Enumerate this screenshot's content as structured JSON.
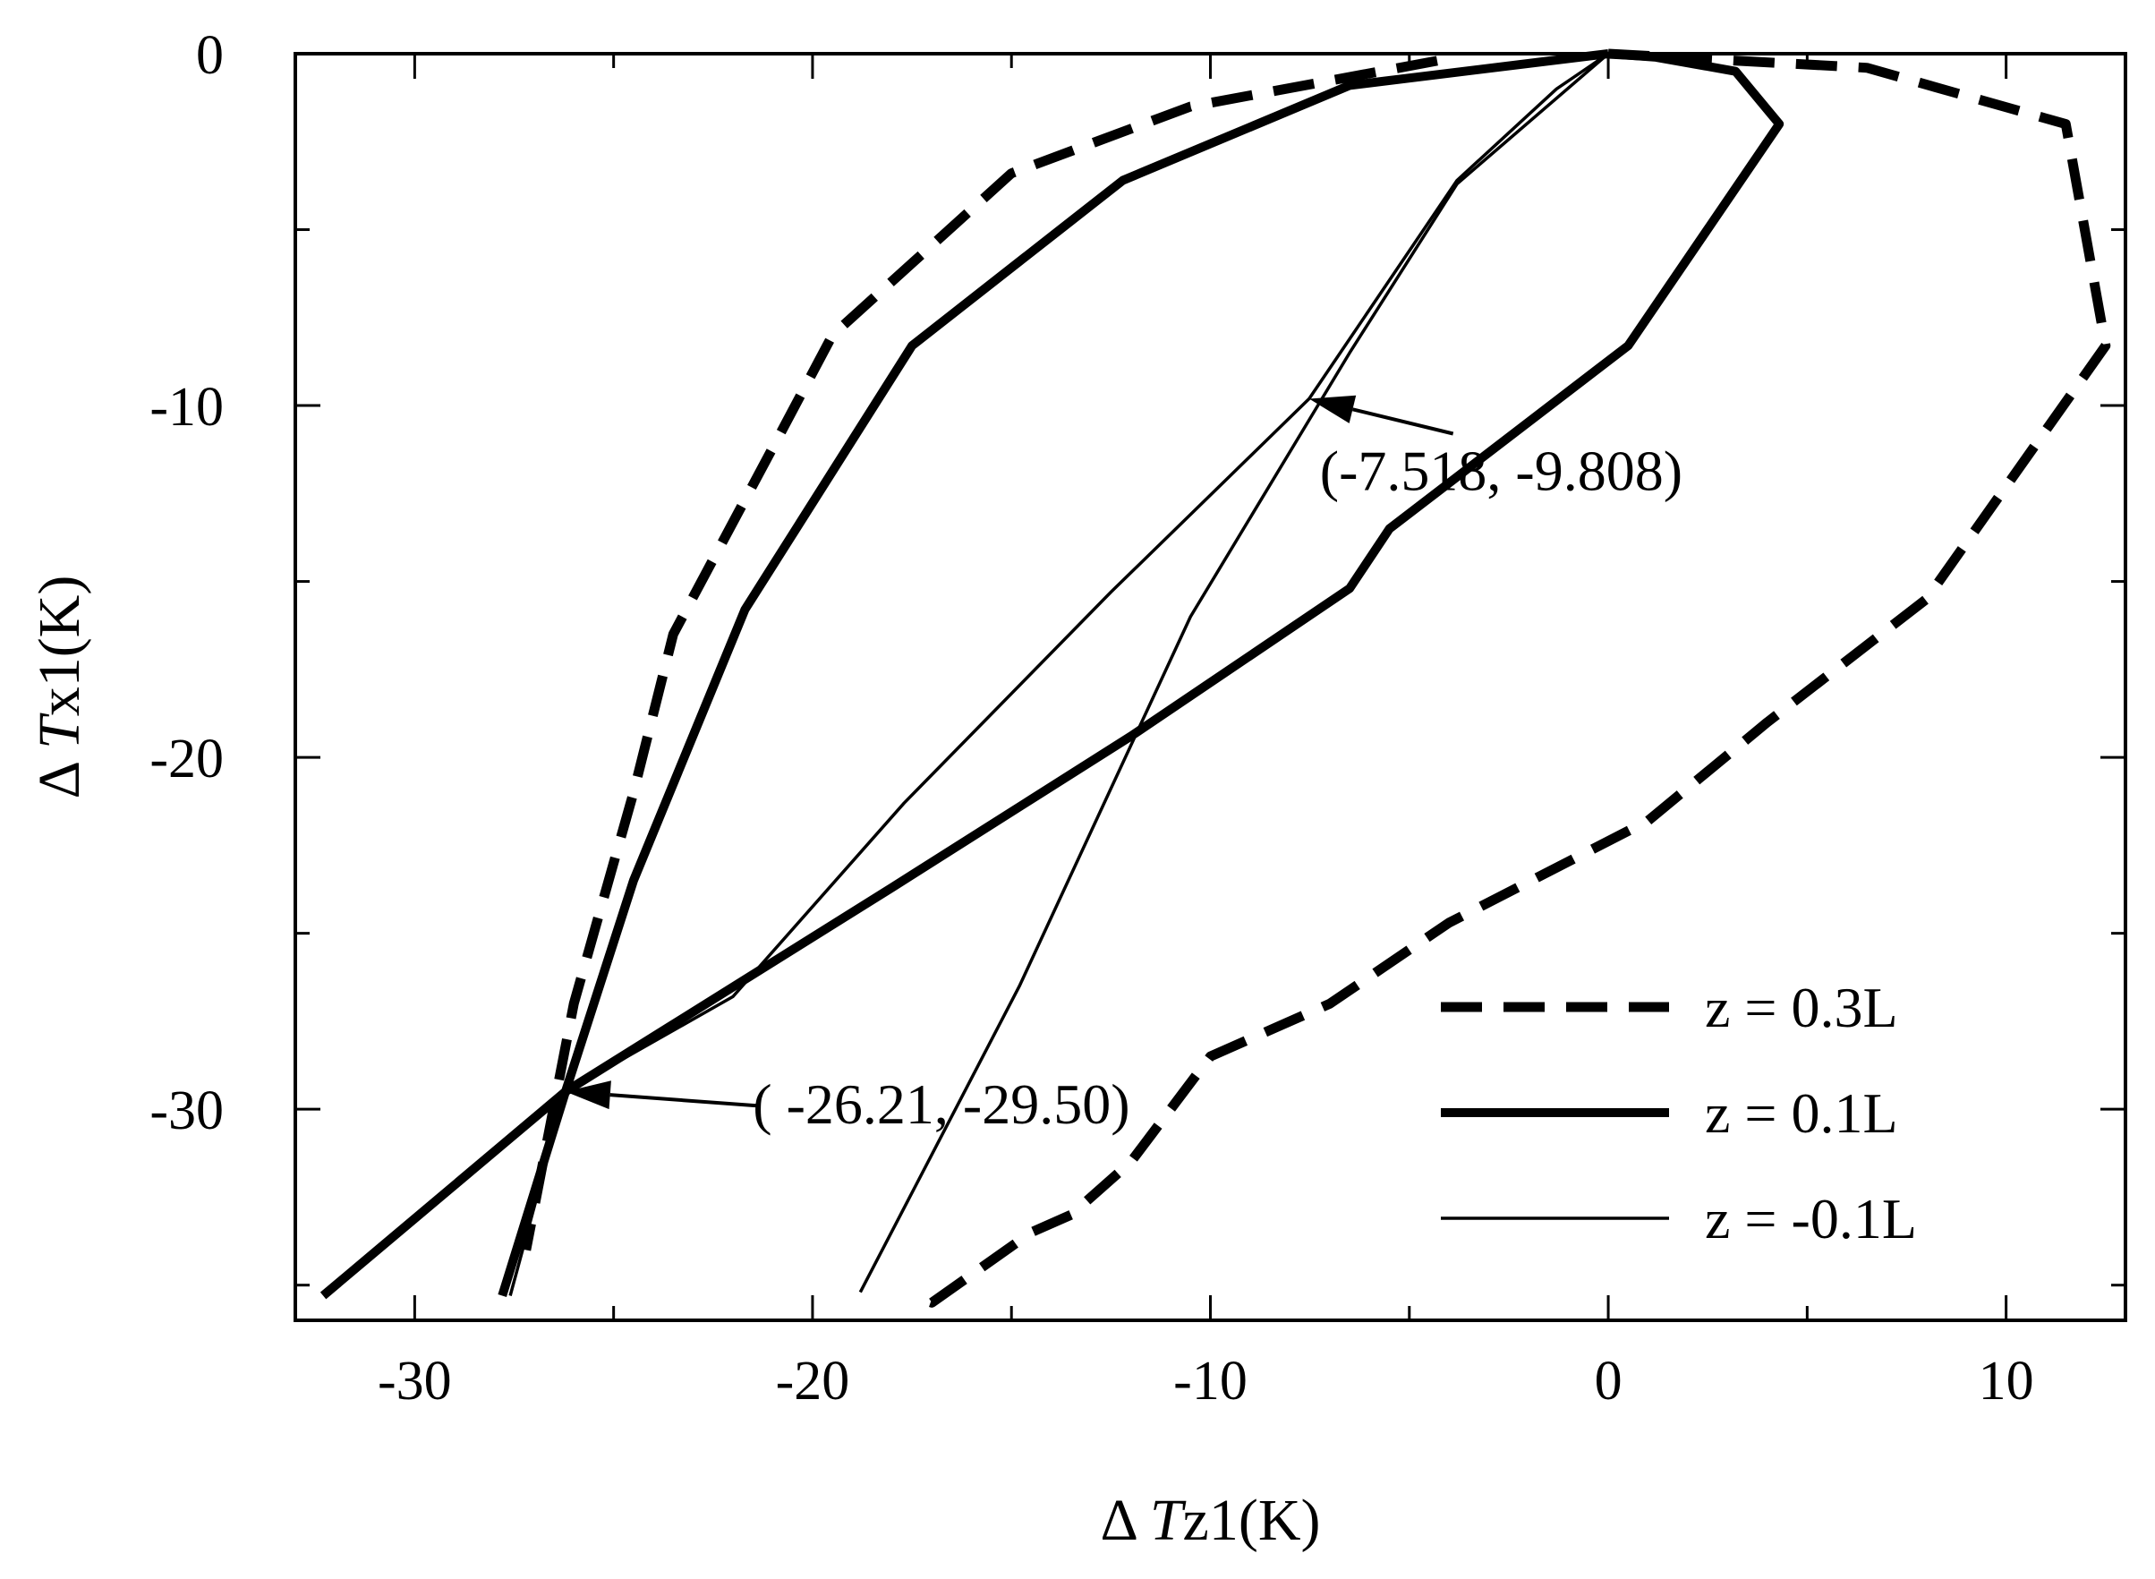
{
  "chart_data": {
    "type": "line",
    "xlabel": {
      "prefix": "Δ ",
      "var": "T",
      "sub": "z1",
      "unit": "(K)"
    },
    "ylabel": {
      "prefix": "Δ ",
      "var": "T",
      "sub": "x1",
      "unit": "(K)"
    },
    "xlim": [
      -33,
      13
    ],
    "ylim": [
      -36,
      0
    ],
    "xticks": [
      -30,
      -20,
      -10,
      0,
      10
    ],
    "xtick_labels": [
      "-30",
      "-20",
      "-10",
      "0",
      "10"
    ],
    "xminor": [
      -25,
      -15,
      -5,
      5
    ],
    "yticks": [
      0,
      -10,
      -20,
      -30
    ],
    "ytick_labels": [
      "0",
      "-10",
      "-20",
      "-30"
    ],
    "yminor": [
      -5,
      -15,
      -25,
      -35
    ],
    "grid": false,
    "legend_position": "bottom-right",
    "series": [
      {
        "name": "z = 0.3L",
        "style": "dashed",
        "x": [
          0,
          6.5,
          11.5,
          12.5,
          8,
          4,
          1,
          -4,
          -7,
          -10,
          -12,
          -13.5,
          -14.5,
          -17,
          -17.5
        ],
        "y": [
          0,
          -0.4,
          -2,
          -8.3,
          -15.5,
          -19,
          -21.8,
          -24.7,
          -27,
          -28.5,
          -31.5,
          -33,
          -33.5,
          -35.5,
          -35.3
        ]
      },
      {
        "name": "z = 0.1L",
        "style": "thick",
        "x": [
          0,
          1.2,
          3.2,
          4.3,
          0.5,
          -5.5,
          -6.5,
          -12,
          -18,
          -26.21,
          -32.3
        ],
        "y": [
          0,
          -0.1,
          -0.5,
          -2,
          -8.3,
          -13.5,
          -15.2,
          -19.4,
          -23.7,
          -29.5,
          -35.3
        ]
      },
      {
        "name": "z = -0.1L",
        "style": "thin",
        "x": [
          0,
          -3.8,
          -6.5,
          -10.5,
          -14.8,
          -18.8
        ],
        "y": [
          0,
          -3.7,
          -8.5,
          -16,
          -26.5,
          -35.2
        ]
      }
    ],
    "extra_curves": [
      {
        "style": "dashed",
        "x": [
          -4.3,
          -10.5,
          -15,
          -19.5,
          -21,
          -23.5,
          -24.5,
          -26,
          -27.2
        ],
        "y": [
          -0.2,
          -1.5,
          -3.4,
          -8,
          -11.2,
          -16.5,
          -21,
          -27,
          -34
        ]
      },
      {
        "style": "thick",
        "x": [
          0,
          -6.5,
          -12.2,
          -17.5,
          -21.7,
          -24.5,
          -26.21,
          -27.8
        ],
        "y": [
          0,
          -0.9,
          -3.6,
          -8.3,
          -15.8,
          -23.5,
          -29.5,
          -35.3
        ]
      },
      {
        "style": "thin",
        "x": [
          0,
          -1.3,
          -3.8,
          -7.518,
          -12.5,
          -17.7,
          -22,
          -26.21,
          -27.6
        ],
        "y": [
          0,
          -1,
          -3.6,
          -9.808,
          -15.3,
          -21.3,
          -26.8,
          -29.5,
          -35.3
        ]
      }
    ],
    "annotations": [
      {
        "text": "(-7.518, -9.808)",
        "point": [
          -7.518,
          -9.808
        ],
        "text_at": [
          -7.25,
          -12.4
        ],
        "arrow_from": [
          -3.9,
          -10.8
        ]
      },
      {
        "text": "( -26.21, -29.50)",
        "point": [
          -26.21,
          -29.5
        ],
        "text_at": [
          -21.5,
          -30.4
        ],
        "arrow_from": [
          -21.4,
          -29.9
        ]
      }
    ]
  }
}
